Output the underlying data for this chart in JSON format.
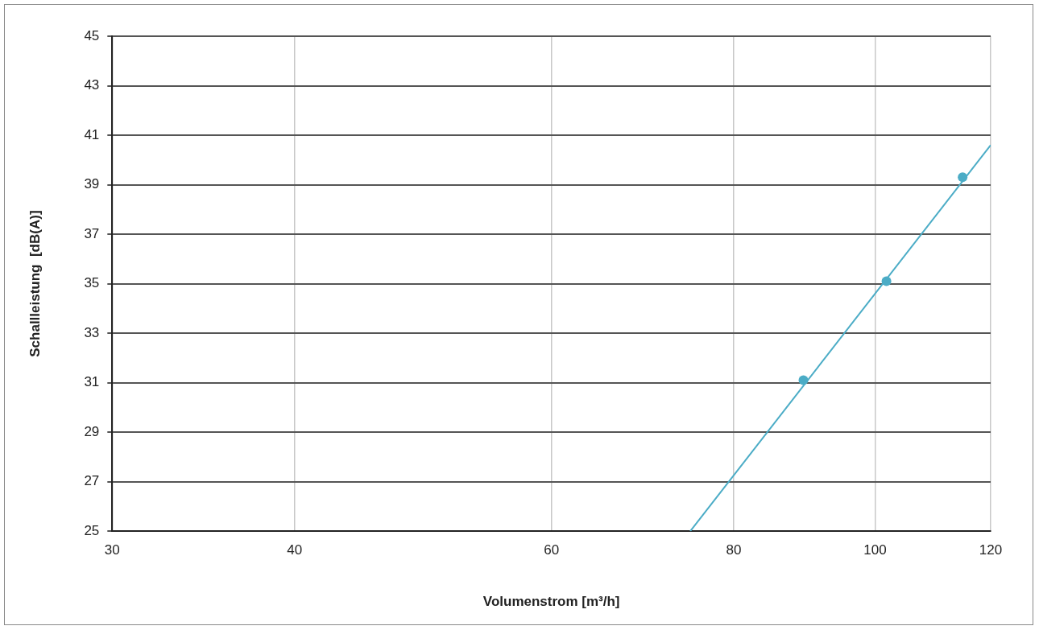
{
  "chart_data": {
    "type": "scatter",
    "xlabel": "Volumenstrom [m³/h]",
    "ylabel": "Schallleistung  [dB(A)]",
    "log": "x",
    "grid": true,
    "legend": false,
    "xlim": [
      30,
      120
    ],
    "xticks": [
      30,
      40,
      60,
      80,
      100,
      120
    ],
    "ylim": [
      25,
      45
    ],
    "yticks": [
      25,
      27,
      29,
      31,
      33,
      35,
      37,
      39,
      41,
      43,
      45
    ],
    "series": [
      {
        "marker": "circle",
        "color": "#4bacc6",
        "x": [
          89.3,
          101.8,
          114.8
        ],
        "values": [
          31.1,
          35.1,
          39.3
        ]
      },
      {
        "type": "line",
        "marker": "none",
        "color": "#4bacc6",
        "x": [
          74.7,
          120
        ],
        "values": [
          25,
          40.6
        ]
      }
    ]
  }
}
